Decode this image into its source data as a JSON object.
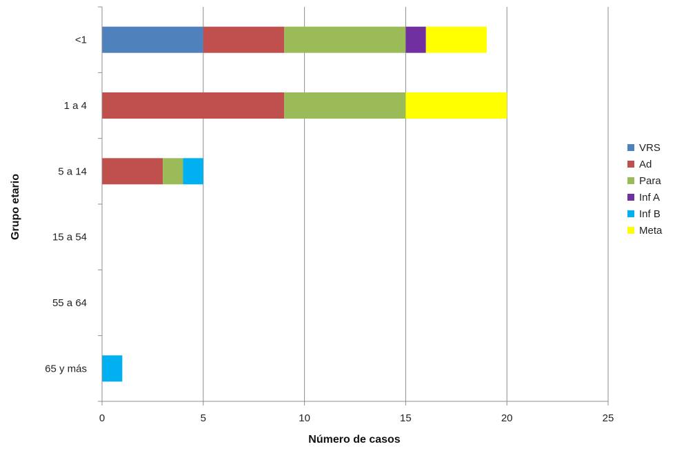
{
  "chart_data": {
    "type": "bar",
    "orientation": "horizontal",
    "stacked": true,
    "title": "",
    "xlabel": "Número de casos",
    "ylabel": "Grupo etario",
    "xlim": [
      0,
      25
    ],
    "xticks": [
      0,
      5,
      10,
      15,
      20,
      25
    ],
    "grid": "vertical",
    "legend": "right",
    "categories": [
      "<1",
      "1 a 4",
      "5 a 14",
      "15 a 54",
      "55 a 64",
      "65 y más"
    ],
    "series": [
      {
        "name": "VRS",
        "color": "#4F81BD",
        "values": [
          5,
          0,
          0,
          0,
          0,
          0
        ]
      },
      {
        "name": "Ad",
        "color": "#C0504D",
        "values": [
          4,
          9,
          3,
          0,
          0,
          0
        ]
      },
      {
        "name": "Para",
        "color": "#9BBB59",
        "values": [
          6,
          6,
          1,
          0,
          0,
          0
        ]
      },
      {
        "name": "Inf A",
        "color": "#7030A0",
        "values": [
          1,
          0,
          0,
          0,
          0,
          0
        ]
      },
      {
        "name": "Inf B",
        "color": "#00B0F0",
        "values": [
          0,
          0,
          1,
          0,
          0,
          1
        ]
      },
      {
        "name": "Meta",
        "color": "#FFFF00",
        "values": [
          3,
          5,
          0,
          0,
          0,
          0
        ]
      }
    ]
  }
}
